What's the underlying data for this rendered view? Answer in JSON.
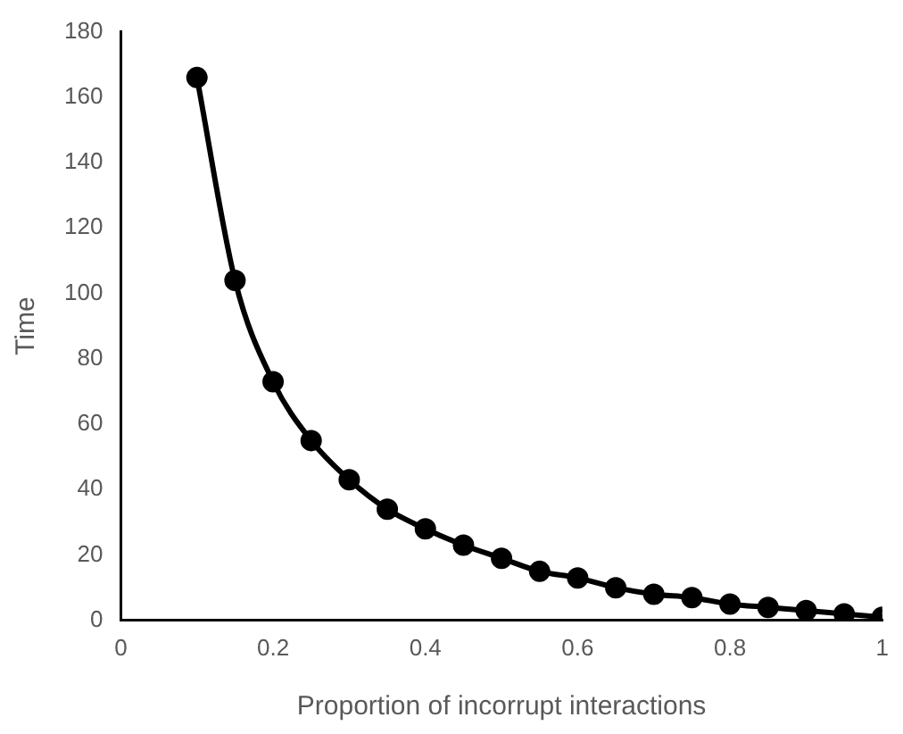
{
  "chart_data": {
    "type": "line",
    "xlabel": "Proportion of incorrupt interactions",
    "ylabel": "Time",
    "x": [
      0.1,
      0.15,
      0.2,
      0.25,
      0.3,
      0.35,
      0.4,
      0.45,
      0.5,
      0.55,
      0.6,
      0.65,
      0.7,
      0.75,
      0.8,
      0.85,
      0.9,
      0.95,
      1
    ],
    "series": [
      {
        "color": "#000000",
        "values": [
          166,
          104,
          73,
          55,
          43,
          34,
          28,
          23,
          19,
          15,
          13,
          10,
          8,
          7,
          5,
          4,
          3,
          2,
          1
        ]
      }
    ],
    "xlim": [
      0,
      1
    ],
    "xticks": [
      0,
      0.2,
      0.4,
      0.6,
      0.8,
      1
    ],
    "ylim": [
      0,
      180
    ],
    "yticks": [
      0,
      20,
      40,
      60,
      80,
      100,
      120,
      140,
      160,
      180
    ],
    "grid": false,
    "legend": false,
    "marker": "circle",
    "line_style": "solid"
  }
}
